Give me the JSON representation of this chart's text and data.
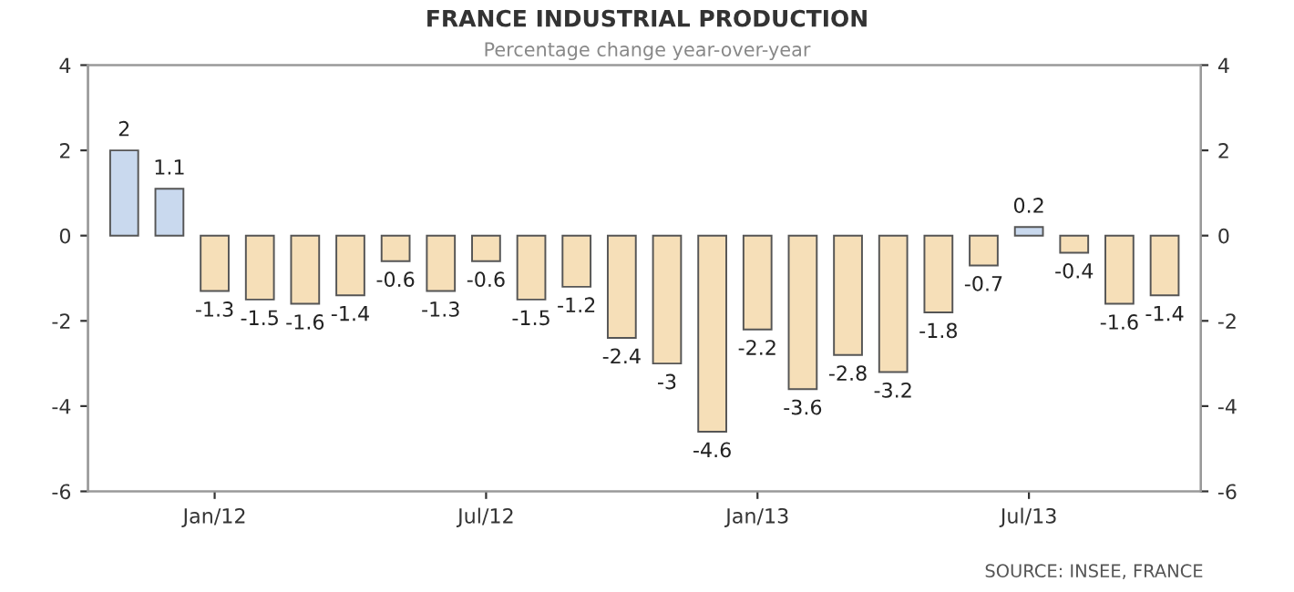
{
  "chart_data": {
    "type": "bar",
    "title": "FRANCE INDUSTRIAL PRODUCTION",
    "subtitle": "Percentage change year-over-year",
    "categories": [
      null,
      null,
      "Jan/12",
      null,
      null,
      null,
      null,
      null,
      "Jul/12",
      null,
      null,
      null,
      null,
      null,
      "Jan/13",
      null,
      null,
      null,
      null,
      null,
      "Jul/13",
      null,
      null,
      null
    ],
    "values": [
      2,
      1.1,
      -1.3,
      -1.5,
      -1.6,
      -1.4,
      -0.6,
      -1.3,
      -0.6,
      -1.5,
      -1.2,
      -2.4,
      -3,
      -4.6,
      -2.2,
      -3.6,
      -2.8,
      -3.2,
      -1.8,
      -0.7,
      0.2,
      -0.4,
      -1.6,
      -1.4
    ],
    "colors": [
      "#c9d9ee",
      "#c9d9ee",
      "#f6dfb8",
      "#f6dfb8",
      "#f6dfb8",
      "#f6dfb8",
      "#f6dfb8",
      "#f6dfb8",
      "#f6dfb8",
      "#f6dfb8",
      "#f6dfb8",
      "#f6dfb8",
      "#f6dfb8",
      "#f6dfb8",
      "#f6dfb8",
      "#f6dfb8",
      "#f6dfb8",
      "#f6dfb8",
      "#f6dfb8",
      "#f6dfb8",
      "#c9d9ee",
      "#f6dfb8",
      "#f6dfb8",
      "#f6dfb8"
    ],
    "ylim": [
      -6,
      4
    ],
    "yticks": [
      -6,
      -4,
      -2,
      0,
      2,
      4
    ],
    "y2lim": [
      -6,
      4
    ],
    "y2ticks": [
      -6,
      -4,
      -2,
      0,
      2,
      4
    ],
    "data_labels": true,
    "grid": false,
    "legend": false,
    "annotations": [
      "SOURCE: INSEE, FRANCE"
    ]
  }
}
